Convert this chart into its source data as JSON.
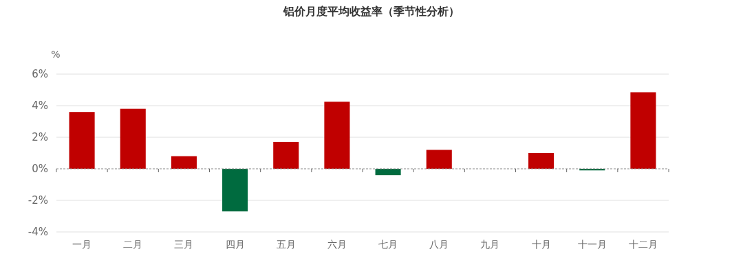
{
  "chart_data": {
    "type": "bar",
    "title": "铝价月度平均收益率（季节性分析）",
    "ylabel": "%",
    "categories": [
      "一月",
      "二月",
      "三月",
      "四月",
      "五月",
      "六月",
      "七月",
      "八月",
      "九月",
      "十月",
      "十一月",
      "十二月"
    ],
    "values": [
      3.6,
      3.8,
      0.8,
      -2.7,
      1.7,
      4.25,
      -0.4,
      1.2,
      0,
      1.0,
      -0.1,
      4.85
    ],
    "colors": [
      "#c00000",
      "#c00000",
      "#c00000",
      "#006b3f",
      "#c00000",
      "#c00000",
      "#006b3f",
      "#c00000",
      "#c00000",
      "#c00000",
      "#006b3f",
      "#c00000"
    ],
    "ylim": [
      -4,
      6
    ],
    "yticks": [
      {
        "value": -4,
        "label": "-4%"
      },
      {
        "value": -2,
        "label": "-2%"
      },
      {
        "value": 0,
        "label": "0%"
      },
      {
        "value": 2,
        "label": "2%"
      },
      {
        "value": 4,
        "label": "4%"
      },
      {
        "value": 6,
        "label": "6%"
      }
    ],
    "ref_lines": [
      {
        "axis": "y",
        "value": 0,
        "color": "#888888",
        "line_style": "dashed"
      }
    ],
    "grid": "y"
  }
}
